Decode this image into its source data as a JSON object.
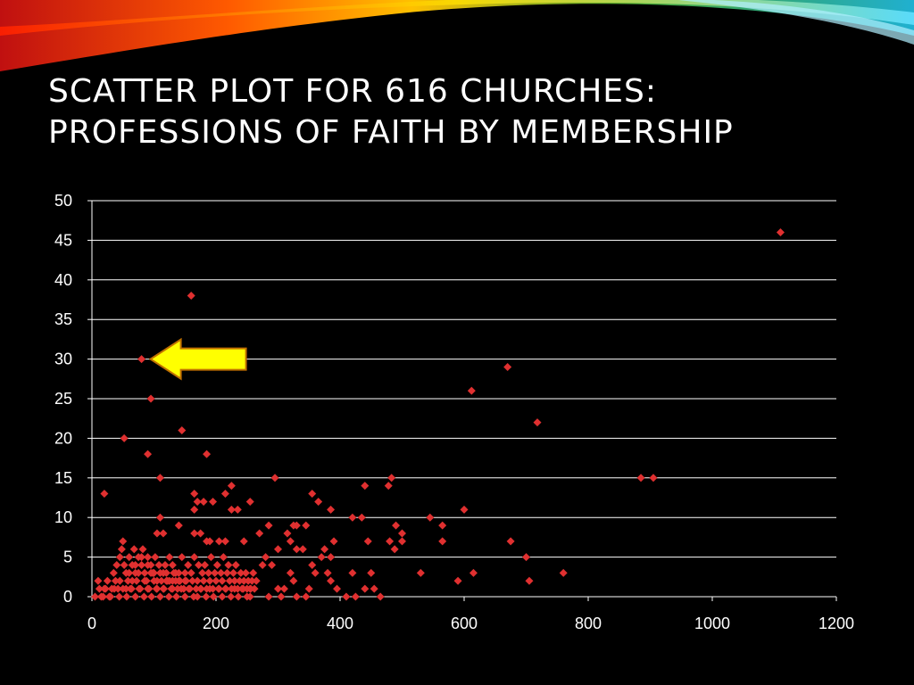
{
  "slide": {
    "title_line1": "Scatter plot for 616 churches:",
    "title_line2": "Professions of faith by membership"
  },
  "colors": {
    "background": "#000000",
    "marker": "#e03030",
    "arrow_fill": "#ffff00",
    "arrow_stroke": "#c07000",
    "grid": "#ffffff"
  },
  "chart_data": {
    "type": "scatter",
    "title": "",
    "xlabel": "",
    "ylabel": "",
    "xlim": [
      0,
      1200
    ],
    "ylim": [
      0,
      50
    ],
    "xticks": [
      "0",
      "200",
      "400",
      "600",
      "800",
      "1000",
      "1200"
    ],
    "yticks": [
      "0",
      "5",
      "10",
      "15",
      "20",
      "25",
      "30",
      "35",
      "40",
      "45",
      "50"
    ],
    "grid": "horizontal",
    "legend": "none",
    "annotation": {
      "type": "arrow",
      "points_to": [
        80,
        30
      ],
      "icon": "arrow-left-icon"
    },
    "points": [
      [
        1110,
        46
      ],
      [
        160,
        38
      ],
      [
        80,
        30
      ],
      [
        670,
        29
      ],
      [
        612,
        26
      ],
      [
        95,
        25
      ],
      [
        718,
        22
      ],
      [
        145,
        21
      ],
      [
        52,
        20
      ],
      [
        90,
        18
      ],
      [
        185,
        18
      ],
      [
        20,
        13
      ],
      [
        110,
        15
      ],
      [
        295,
        15
      ],
      [
        440,
        14
      ],
      [
        483,
        15
      ],
      [
        478,
        14
      ],
      [
        885,
        15
      ],
      [
        905,
        15
      ],
      [
        165,
        13
      ],
      [
        170,
        12
      ],
      [
        180,
        12
      ],
      [
        195,
        12
      ],
      [
        215,
        13
      ],
      [
        225,
        14
      ],
      [
        355,
        13
      ],
      [
        365,
        12
      ],
      [
        110,
        10
      ],
      [
        165,
        11
      ],
      [
        225,
        11
      ],
      [
        235,
        11
      ],
      [
        255,
        12
      ],
      [
        325,
        9
      ],
      [
        330,
        9
      ],
      [
        345,
        9
      ],
      [
        385,
        11
      ],
      [
        420,
        10
      ],
      [
        435,
        10
      ],
      [
        600,
        11
      ],
      [
        545,
        10
      ],
      [
        565,
        9
      ],
      [
        490,
        9
      ],
      [
        500,
        8
      ],
      [
        480,
        7
      ],
      [
        488,
        6
      ],
      [
        500,
        7
      ],
      [
        105,
        8
      ],
      [
        115,
        8
      ],
      [
        140,
        9
      ],
      [
        165,
        8
      ],
      [
        175,
        8
      ],
      [
        185,
        7
      ],
      [
        190,
        7
      ],
      [
        205,
        7
      ],
      [
        215,
        7
      ],
      [
        245,
        7
      ],
      [
        270,
        8
      ],
      [
        285,
        9
      ],
      [
        300,
        6
      ],
      [
        315,
        8
      ],
      [
        320,
        7
      ],
      [
        330,
        6
      ],
      [
        340,
        6
      ],
      [
        375,
        6
      ],
      [
        385,
        5
      ],
      [
        390,
        7
      ],
      [
        445,
        7
      ],
      [
        565,
        7
      ],
      [
        675,
        7
      ],
      [
        700,
        5
      ],
      [
        760,
        3
      ],
      [
        705,
        2
      ],
      [
        615,
        3
      ],
      [
        590,
        2
      ],
      [
        530,
        3
      ],
      [
        280,
        5
      ],
      [
        275,
        4
      ],
      [
        290,
        4
      ],
      [
        310,
        1
      ],
      [
        320,
        3
      ],
      [
        325,
        2
      ],
      [
        350,
        1
      ],
      [
        355,
        4
      ],
      [
        360,
        3
      ],
      [
        370,
        5
      ],
      [
        380,
        3
      ],
      [
        385,
        2
      ],
      [
        395,
        1
      ],
      [
        410,
        0
      ],
      [
        420,
        3
      ],
      [
        425,
        0
      ],
      [
        440,
        1
      ],
      [
        450,
        3
      ],
      [
        455,
        1
      ],
      [
        465,
        0
      ],
      [
        345,
        0
      ],
      [
        330,
        0
      ],
      [
        305,
        0
      ],
      [
        300,
        1
      ],
      [
        285,
        0
      ],
      [
        265,
        2
      ],
      [
        260,
        3
      ],
      [
        255,
        1
      ],
      [
        10,
        2
      ],
      [
        5,
        0
      ],
      [
        12,
        1
      ],
      [
        18,
        0
      ],
      [
        22,
        1
      ],
      [
        25,
        2
      ],
      [
        28,
        0
      ],
      [
        32,
        1
      ],
      [
        35,
        3
      ],
      [
        38,
        2
      ],
      [
        40,
        4
      ],
      [
        42,
        1
      ],
      [
        45,
        5
      ],
      [
        48,
        6
      ],
      [
        50,
        7
      ],
      [
        52,
        4
      ],
      [
        55,
        3
      ],
      [
        58,
        2
      ],
      [
        60,
        5
      ],
      [
        62,
        1
      ],
      [
        65,
        4
      ],
      [
        68,
        6
      ],
      [
        70,
        3
      ],
      [
        72,
        2
      ],
      [
        75,
        5
      ],
      [
        78,
        1
      ],
      [
        80,
        4
      ],
      [
        82,
        6
      ],
      [
        85,
        3
      ],
      [
        88,
        2
      ],
      [
        90,
        5
      ],
      [
        92,
        1
      ],
      [
        95,
        4
      ],
      [
        98,
        3
      ],
      [
        100,
        2
      ],
      [
        102,
        5
      ],
      [
        105,
        1
      ],
      [
        108,
        4
      ],
      [
        110,
        3
      ],
      [
        112,
        2
      ],
      [
        115,
        1
      ],
      [
        118,
        4
      ],
      [
        120,
        3
      ],
      [
        122,
        2
      ],
      [
        125,
        5
      ],
      [
        128,
        1
      ],
      [
        130,
        4
      ],
      [
        132,
        3
      ],
      [
        135,
        2
      ],
      [
        138,
        1
      ],
      [
        140,
        3
      ],
      [
        142,
        2
      ],
      [
        145,
        5
      ],
      [
        148,
        1
      ],
      [
        150,
        3
      ],
      [
        152,
        2
      ],
      [
        155,
        4
      ],
      [
        158,
        1
      ],
      [
        160,
        3
      ],
      [
        162,
        2
      ],
      [
        165,
        5
      ],
      [
        168,
        1
      ],
      [
        170,
        2
      ],
      [
        172,
        4
      ],
      [
        175,
        1
      ],
      [
        178,
        3
      ],
      [
        180,
        2
      ],
      [
        182,
        4
      ],
      [
        185,
        1
      ],
      [
        188,
        3
      ],
      [
        190,
        2
      ],
      [
        192,
        5
      ],
      [
        195,
        1
      ],
      [
        198,
        3
      ],
      [
        200,
        2
      ],
      [
        202,
        4
      ],
      [
        205,
        1
      ],
      [
        208,
        3
      ],
      [
        210,
        2
      ],
      [
        212,
        5
      ],
      [
        215,
        1
      ],
      [
        218,
        3
      ],
      [
        220,
        4
      ],
      [
        222,
        2
      ],
      [
        225,
        1
      ],
      [
        228,
        3
      ],
      [
        230,
        2
      ],
      [
        232,
        4
      ],
      [
        235,
        1
      ],
      [
        238,
        2
      ],
      [
        240,
        3
      ],
      [
        242,
        1
      ],
      [
        245,
        2
      ],
      [
        248,
        3
      ],
      [
        250,
        1
      ],
      [
        252,
        2
      ],
      [
        255,
        0
      ],
      [
        258,
        2
      ],
      [
        262,
        1
      ],
      [
        15,
        0
      ],
      [
        20,
        1
      ],
      [
        30,
        0
      ],
      [
        36,
        1
      ],
      [
        44,
        0
      ],
      [
        50,
        1
      ],
      [
        56,
        0
      ],
      [
        64,
        1
      ],
      [
        70,
        0
      ],
      [
        76,
        1
      ],
      [
        84,
        0
      ],
      [
        90,
        1
      ],
      [
        96,
        0
      ],
      [
        104,
        1
      ],
      [
        110,
        0
      ],
      [
        116,
        1
      ],
      [
        124,
        0
      ],
      [
        130,
        1
      ],
      [
        136,
        0
      ],
      [
        144,
        1
      ],
      [
        150,
        0
      ],
      [
        156,
        1
      ],
      [
        164,
        0
      ],
      [
        170,
        0
      ],
      [
        176,
        1
      ],
      [
        184,
        0
      ],
      [
        190,
        1
      ],
      [
        196,
        0
      ],
      [
        204,
        1
      ],
      [
        210,
        0
      ],
      [
        216,
        1
      ],
      [
        224,
        0
      ],
      [
        230,
        1
      ],
      [
        236,
        0
      ],
      [
        244,
        1
      ],
      [
        250,
        0
      ],
      [
        256,
        1
      ],
      [
        45,
        2
      ],
      [
        55,
        1
      ],
      [
        65,
        2
      ],
      [
        75,
        3
      ],
      [
        85,
        2
      ],
      [
        95,
        3
      ],
      [
        105,
        2
      ],
      [
        115,
        3
      ],
      [
        125,
        2
      ],
      [
        135,
        3
      ],
      [
        60,
        3
      ],
      [
        70,
        4
      ],
      [
        80,
        5
      ],
      [
        90,
        4
      ],
      [
        100,
        3
      ],
      [
        120,
        2
      ],
      [
        130,
        2
      ],
      [
        140,
        2
      ],
      [
        150,
        2
      ]
    ]
  }
}
